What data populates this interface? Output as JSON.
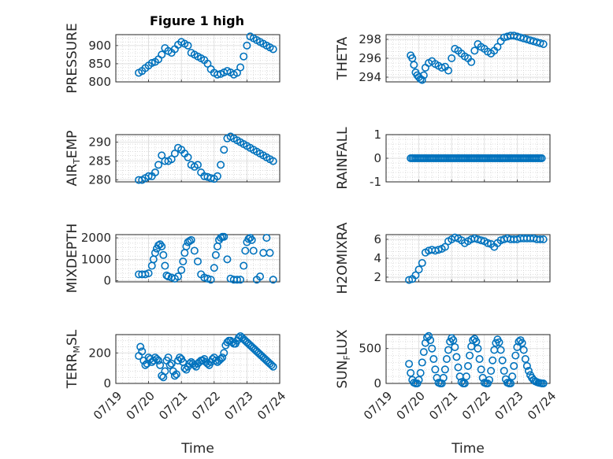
{
  "figure": {
    "title": "Figure 1 high",
    "marker_color": "#0072bd",
    "x_ticks": [
      "07/19",
      "07/20",
      "07/21",
      "07/22",
      "07/23",
      "07/24"
    ],
    "x_label": "Time"
  },
  "chart_data": [
    {
      "id": "pressure",
      "type": "scatter",
      "ylabel": "PRESSURE",
      "title": "Figure 1 high",
      "xlim": [
        "07/19",
        "07/24"
      ],
      "ylim": [
        800,
        930
      ],
      "yticks": [
        800,
        850,
        900
      ],
      "x": [
        0.7,
        0.8,
        0.9,
        1.0,
        1.1,
        1.2,
        1.3,
        1.4,
        1.5,
        1.6,
        1.7,
        1.8,
        1.9,
        2.0,
        2.1,
        2.2,
        2.3,
        2.4,
        2.5,
        2.6,
        2.7,
        2.8,
        2.9,
        3.0,
        3.1,
        3.2,
        3.3,
        3.4,
        3.5,
        3.6,
        3.7,
        3.8,
        3.9,
        4.0,
        4.1,
        4.2,
        4.3,
        4.4,
        4.5,
        4.6,
        4.7,
        4.8
      ],
      "y": [
        825,
        830,
        838,
        845,
        852,
        855,
        862,
        875,
        893,
        885,
        880,
        890,
        902,
        910,
        905,
        900,
        880,
        875,
        870,
        865,
        860,
        850,
        835,
        825,
        820,
        822,
        826,
        830,
        826,
        820,
        825,
        840,
        870,
        900,
        925,
        920,
        915,
        910,
        905,
        900,
        895,
        890
      ]
    },
    {
      "id": "theta",
      "type": "scatter",
      "ylabel": "THETA",
      "xlim": [
        "07/19",
        "07/24"
      ],
      "ylim": [
        293.5,
        298.5
      ],
      "yticks": [
        294,
        296,
        298
      ],
      "x": [
        0.75,
        0.8,
        0.85,
        0.9,
        0.95,
        1.0,
        1.05,
        1.1,
        1.15,
        1.2,
        1.3,
        1.4,
        1.5,
        1.6,
        1.7,
        1.8,
        1.9,
        2.0,
        2.1,
        2.2,
        2.3,
        2.4,
        2.5,
        2.6,
        2.7,
        2.8,
        2.9,
        3.0,
        3.1,
        3.2,
        3.3,
        3.4,
        3.5,
        3.6,
        3.7,
        3.8,
        3.9,
        4.0,
        4.1,
        4.2,
        4.3,
        4.4,
        4.5,
        4.6,
        4.7,
        4.8
      ],
      "y": [
        296.3,
        296.0,
        295.3,
        294.5,
        294.2,
        294.0,
        293.8,
        293.7,
        294.2,
        295.0,
        295.5,
        295.7,
        295.4,
        295.2,
        295.0,
        295.1,
        294.7,
        296.0,
        297.0,
        296.8,
        296.5,
        296.2,
        296.0,
        295.6,
        296.8,
        297.5,
        297.2,
        297.0,
        296.7,
        296.5,
        296.8,
        297.2,
        297.8,
        298.2,
        298.3,
        298.4,
        298.4,
        298.3,
        298.2,
        298.1,
        298.0,
        297.9,
        297.8,
        297.7,
        297.6,
        297.5
      ]
    },
    {
      "id": "air_temp",
      "type": "scatter",
      "ylabel": "AIR",
      "ylabel_subscript": "T",
      "ylabel_suffix": "EMP",
      "xlim": [
        "07/19",
        "07/24"
      ],
      "ylim": [
        279.5,
        292
      ],
      "yticks": [
        280,
        285,
        290
      ],
      "x": [
        0.7,
        0.8,
        0.9,
        1.0,
        1.1,
        1.2,
        1.3,
        1.4,
        1.5,
        1.6,
        1.7,
        1.8,
        1.9,
        2.0,
        2.1,
        2.2,
        2.3,
        2.4,
        2.5,
        2.6,
        2.7,
        2.8,
        2.9,
        3.0,
        3.1,
        3.2,
        3.3,
        3.4,
        3.5,
        3.6,
        3.7,
        3.8,
        3.9,
        4.0,
        4.1,
        4.2,
        4.3,
        4.4,
        4.5,
        4.6,
        4.7,
        4.8
      ],
      "y": [
        280,
        280,
        280.5,
        281,
        281,
        282,
        284,
        286.5,
        285,
        285,
        285.5,
        287,
        288.5,
        288,
        287,
        286,
        284,
        283.5,
        284,
        282,
        281,
        280.8,
        280.5,
        280.3,
        281,
        284,
        288,
        291,
        291.5,
        291,
        290.5,
        290,
        289.5,
        289,
        288.5,
        288,
        287.5,
        287,
        286.5,
        286,
        285.5,
        285
      ]
    },
    {
      "id": "rainfall",
      "type": "scatter",
      "ylabel": "RAINFALL",
      "xlim": [
        "07/19",
        "07/24"
      ],
      "ylim": [
        -1,
        1
      ],
      "yticks": [
        -1,
        0,
        1
      ],
      "x_start": 0.75,
      "x_end": 4.75,
      "x_step": 0.05,
      "value": 0
    },
    {
      "id": "mixdepth",
      "type": "scatter",
      "ylabel": "MIXDEPTH",
      "xlim": [
        "07/19",
        "07/24"
      ],
      "ylim": [
        -50,
        2150
      ],
      "yticks": [
        0,
        1000,
        2000
      ],
      "x": [
        0.7,
        0.8,
        0.9,
        1.0,
        1.1,
        1.15,
        1.2,
        1.25,
        1.3,
        1.35,
        1.4,
        1.45,
        1.5,
        1.55,
        1.6,
        1.7,
        1.8,
        1.9,
        2.0,
        2.05,
        2.1,
        2.15,
        2.2,
        2.25,
        2.3,
        2.4,
        2.5,
        2.6,
        2.7,
        2.8,
        2.9,
        3.0,
        3.05,
        3.1,
        3.15,
        3.2,
        3.25,
        3.3,
        3.4,
        3.5,
        3.6,
        3.7,
        3.8,
        3.9,
        3.95,
        4.0,
        4.05,
        4.1,
        4.15,
        4.2,
        4.3,
        4.4,
        4.5,
        4.6,
        4.7,
        4.8
      ],
      "y": [
        300,
        300,
        300,
        350,
        700,
        1000,
        1300,
        1500,
        1650,
        1700,
        1600,
        1200,
        700,
        250,
        200,
        150,
        100,
        200,
        500,
        900,
        1300,
        1600,
        1800,
        1850,
        1900,
        1400,
        900,
        300,
        150,
        100,
        50,
        600,
        1200,
        1600,
        1900,
        2000,
        2050,
        2050,
        1000,
        100,
        50,
        50,
        50,
        700,
        1400,
        1800,
        1950,
        2000,
        1900,
        1400,
        50,
        200,
        1300,
        2000,
        1300,
        50
      ]
    },
    {
      "id": "h2omixra",
      "type": "scatter",
      "ylabel": "H2OMIXRA",
      "xlim": [
        "07/19",
        "07/24"
      ],
      "ylim": [
        1.5,
        6.5
      ],
      "yticks": [
        2,
        4,
        6
      ],
      "x": [
        0.7,
        0.8,
        0.9,
        1.0,
        1.1,
        1.2,
        1.3,
        1.4,
        1.5,
        1.6,
        1.7,
        1.8,
        1.9,
        2.0,
        2.1,
        2.2,
        2.3,
        2.4,
        2.5,
        2.6,
        2.7,
        2.8,
        2.9,
        3.0,
        3.1,
        3.2,
        3.3,
        3.4,
        3.5,
        3.6,
        3.7,
        3.8,
        3.9,
        4.0,
        4.1,
        4.2,
        4.3,
        4.4,
        4.5,
        4.6,
        4.7,
        4.8
      ],
      "y": [
        1.7,
        1.8,
        2.2,
        2.8,
        3.5,
        4.6,
        4.8,
        4.9,
        4.8,
        4.9,
        5.0,
        5.2,
        5.8,
        6.0,
        6.2,
        6.1,
        5.9,
        5.6,
        5.8,
        6.0,
        6.1,
        6.0,
        5.9,
        5.8,
        5.6,
        5.5,
        5.2,
        5.6,
        5.9,
        6.0,
        6.1,
        6.0,
        6.0,
        6.0,
        6.1,
        6.1,
        6.1,
        6.1,
        6.1,
        6.0,
        6.0,
        6.0
      ]
    },
    {
      "id": "terr_msl",
      "type": "scatter",
      "ylabel": "TERR",
      "ylabel_subscript": "M",
      "ylabel_suffix": "SL",
      "xlim": [
        "07/19",
        "07/24"
      ],
      "ylim": [
        0,
        320
      ],
      "yticks": [
        0,
        200
      ],
      "x": [
        0.7,
        0.75,
        0.8,
        0.85,
        0.9,
        0.95,
        1.0,
        1.05,
        1.1,
        1.15,
        1.2,
        1.25,
        1.3,
        1.35,
        1.4,
        1.45,
        1.5,
        1.55,
        1.6,
        1.65,
        1.7,
        1.75,
        1.8,
        1.85,
        1.9,
        1.95,
        2.0,
        2.05,
        2.1,
        2.15,
        2.2,
        2.25,
        2.3,
        2.35,
        2.4,
        2.45,
        2.5,
        2.55,
        2.6,
        2.65,
        2.7,
        2.75,
        2.8,
        2.85,
        2.9,
        2.95,
        3.0,
        3.05,
        3.1,
        3.15,
        3.2,
        3.25,
        3.3,
        3.35,
        3.4,
        3.45,
        3.5,
        3.55,
        3.6,
        3.65,
        3.7,
        3.75,
        3.8,
        3.85,
        3.9,
        3.95,
        4.0,
        4.05,
        4.1,
        4.15,
        4.2,
        4.25,
        4.3,
        4.35,
        4.4,
        4.45,
        4.5,
        4.55,
        4.6,
        4.65,
        4.7,
        4.75,
        4.8
      ],
      "y": [
        180,
        240,
        210,
        150,
        120,
        130,
        170,
        160,
        140,
        150,
        170,
        160,
        150,
        120,
        50,
        40,
        80,
        150,
        170,
        120,
        130,
        80,
        50,
        60,
        150,
        170,
        160,
        140,
        100,
        90,
        110,
        130,
        140,
        130,
        120,
        110,
        130,
        140,
        150,
        150,
        160,
        140,
        130,
        120,
        140,
        160,
        170,
        150,
        140,
        150,
        160,
        170,
        200,
        250,
        270,
        280,
        280,
        270,
        260,
        260,
        280,
        300,
        310,
        300,
        290,
        280,
        270,
        260,
        250,
        240,
        230,
        220,
        210,
        200,
        190,
        180,
        170,
        160,
        150,
        140,
        130,
        120,
        110
      ]
    },
    {
      "id": "sun_flux",
      "type": "scatter",
      "ylabel": "SUN",
      "ylabel_subscript": "F",
      "ylabel_suffix": "LUX",
      "xlim": [
        "07/19",
        "07/24"
      ],
      "ylim": [
        0,
        700
      ],
      "yticks": [
        0,
        500
      ],
      "x": [
        0.7,
        0.75,
        0.8,
        0.85,
        0.9,
        0.95,
        1.0,
        1.05,
        1.1,
        1.15,
        1.2,
        1.25,
        1.3,
        1.35,
        1.4,
        1.45,
        1.5,
        1.55,
        1.6,
        1.65,
        1.7,
        1.75,
        1.8,
        1.85,
        1.9,
        1.95,
        2.0,
        2.05,
        2.1,
        2.15,
        2.2,
        2.25,
        2.3,
        2.35,
        2.4,
        2.45,
        2.5,
        2.55,
        2.6,
        2.65,
        2.7,
        2.75,
        2.8,
        2.85,
        2.9,
        2.95,
        3.0,
        3.05,
        3.1,
        3.15,
        3.2,
        3.25,
        3.3,
        3.35,
        3.4,
        3.45,
        3.5,
        3.55,
        3.6,
        3.65,
        3.7,
        3.75,
        3.8,
        3.85,
        3.9,
        3.95,
        4.0,
        4.05,
        4.1,
        4.15,
        4.2,
        4.25,
        4.3,
        4.35,
        4.4,
        4.45,
        4.5,
        4.55,
        4.6,
        4.65,
        4.7,
        4.75,
        4.8
      ],
      "y": [
        280,
        150,
        50,
        10,
        0,
        0,
        50,
        150,
        300,
        450,
        580,
        660,
        680,
        620,
        500,
        350,
        200,
        80,
        10,
        0,
        0,
        80,
        200,
        350,
        480,
        600,
        650,
        620,
        520,
        380,
        230,
        100,
        20,
        0,
        0,
        100,
        250,
        400,
        530,
        620,
        640,
        600,
        500,
        350,
        200,
        80,
        10,
        0,
        0,
        50,
        180,
        330,
        480,
        580,
        630,
        590,
        480,
        330,
        180,
        60,
        10,
        0,
        0,
        100,
        250,
        400,
        520,
        600,
        620,
        580,
        480,
        350,
        250,
        180,
        120,
        80,
        50,
        30,
        20,
        10,
        5,
        0,
        0
      ]
    }
  ]
}
